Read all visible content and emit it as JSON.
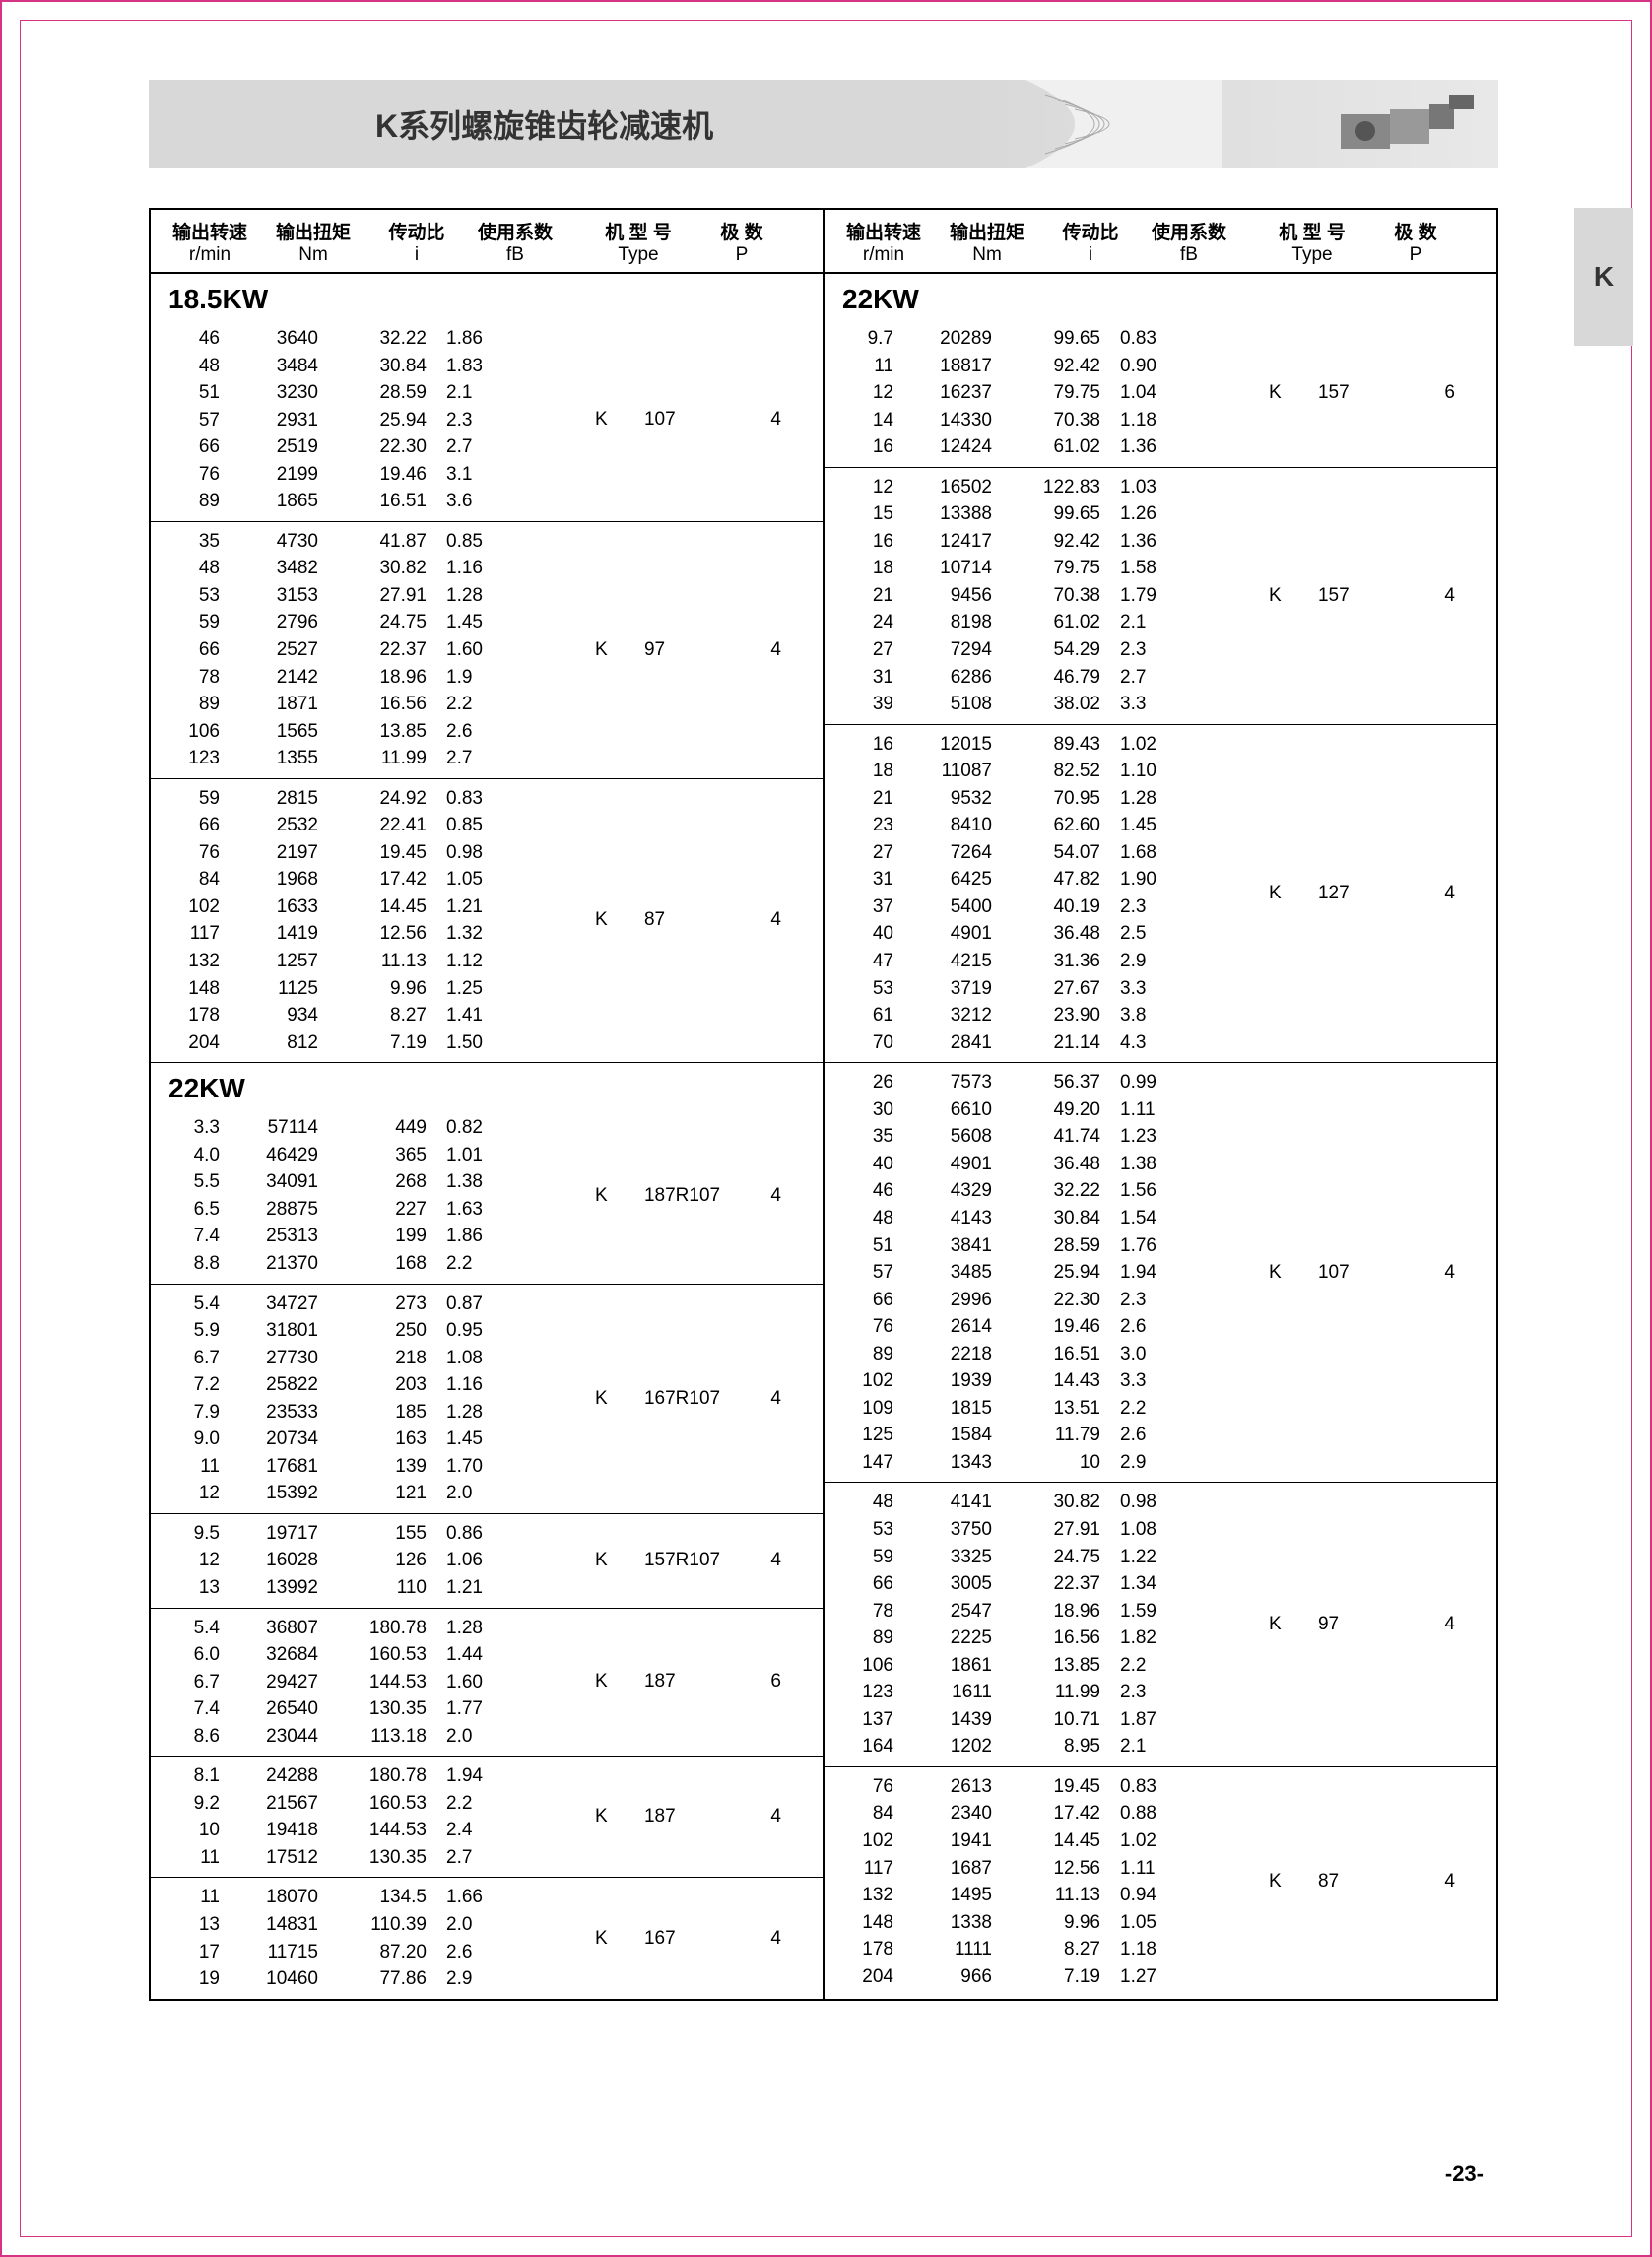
{
  "header": {
    "title": "K系列螺旋锥齿轮减速机"
  },
  "side_tab": "K",
  "page_number": "-23-",
  "columns_header": {
    "h1": "输出转速",
    "h2": "输出扭矩",
    "h3": "传动比",
    "h4": "使用系数",
    "h5": "机 型 号",
    "h6": "极 数",
    "s1": "r/min",
    "s2": "Nm",
    "s3": "i",
    "s4": "fB",
    "s5": "Type",
    "s6": "P"
  },
  "left": [
    {
      "title": "18.5KW",
      "blocks": [
        {
          "type_k": "K",
          "type_num": "107",
          "type_p": "4",
          "rows": [
            [
              "46",
              "3640",
              "32.22",
              "1.86"
            ],
            [
              "48",
              "3484",
              "30.84",
              "1.83"
            ],
            [
              "51",
              "3230",
              "28.59",
              "2.1"
            ],
            [
              "57",
              "2931",
              "25.94",
              "2.3"
            ],
            [
              "66",
              "2519",
              "22.30",
              "2.7"
            ],
            [
              "76",
              "2199",
              "19.46",
              "3.1"
            ],
            [
              "89",
              "1865",
              "16.51",
              "3.6"
            ]
          ]
        },
        {
          "type_k": "K",
          "type_num": "97",
          "type_p": "4",
          "rows": [
            [
              "35",
              "4730",
              "41.87",
              "0.85"
            ],
            [
              "48",
              "3482",
              "30.82",
              "1.16"
            ],
            [
              "53",
              "3153",
              "27.91",
              "1.28"
            ],
            [
              "59",
              "2796",
              "24.75",
              "1.45"
            ],
            [
              "66",
              "2527",
              "22.37",
              "1.60"
            ],
            [
              "78",
              "2142",
              "18.96",
              "1.9"
            ],
            [
              "89",
              "1871",
              "16.56",
              "2.2"
            ],
            [
              "106",
              "1565",
              "13.85",
              "2.6"
            ],
            [
              "123",
              "1355",
              "11.99",
              "2.7"
            ]
          ]
        },
        {
          "type_k": "K",
          "type_num": "87",
          "type_p": "4",
          "rows": [
            [
              "59",
              "2815",
              "24.92",
              "0.83"
            ],
            [
              "66",
              "2532",
              "22.41",
              "0.85"
            ],
            [
              "76",
              "2197",
              "19.45",
              "0.98"
            ],
            [
              "84",
              "1968",
              "17.42",
              "1.05"
            ],
            [
              "102",
              "1633",
              "14.45",
              "1.21"
            ],
            [
              "117",
              "1419",
              "12.56",
              "1.32"
            ],
            [
              "132",
              "1257",
              "11.13",
              "1.12"
            ],
            [
              "148",
              "1125",
              "9.96",
              "1.25"
            ],
            [
              "178",
              "934",
              "8.27",
              "1.41"
            ],
            [
              "204",
              "812",
              "7.19",
              "1.50"
            ]
          ]
        }
      ]
    },
    {
      "title": "22KW",
      "blocks": [
        {
          "type_k": "K",
          "type_num": "187R107",
          "type_p": "4",
          "rows": [
            [
              "3.3",
              "57114",
              "449",
              "0.82"
            ],
            [
              "4.0",
              "46429",
              "365",
              "1.01"
            ],
            [
              "5.5",
              "34091",
              "268",
              "1.38"
            ],
            [
              "6.5",
              "28875",
              "227",
              "1.63"
            ],
            [
              "7.4",
              "25313",
              "199",
              "1.86"
            ],
            [
              "8.8",
              "21370",
              "168",
              "2.2"
            ]
          ]
        },
        {
          "type_k": "K",
          "type_num": "167R107",
          "type_p": "4",
          "rows": [
            [
              "5.4",
              "34727",
              "273",
              "0.87"
            ],
            [
              "5.9",
              "31801",
              "250",
              "0.95"
            ],
            [
              "6.7",
              "27730",
              "218",
              "1.08"
            ],
            [
              "7.2",
              "25822",
              "203",
              "1.16"
            ],
            [
              "7.9",
              "23533",
              "185",
              "1.28"
            ],
            [
              "9.0",
              "20734",
              "163",
              "1.45"
            ],
            [
              "11",
              "17681",
              "139",
              "1.70"
            ],
            [
              "12",
              "15392",
              "121",
              "2.0"
            ]
          ]
        },
        {
          "type_k": "K",
          "type_num": "157R107",
          "type_p": "4",
          "rows": [
            [
              "9.5",
              "19717",
              "155",
              "0.86"
            ],
            [
              "12",
              "16028",
              "126",
              "1.06"
            ],
            [
              "13",
              "13992",
              "110",
              "1.21"
            ]
          ]
        },
        {
          "type_k": "K",
          "type_num": "187",
          "type_p": "6",
          "rows": [
            [
              "5.4",
              "36807",
              "180.78",
              "1.28"
            ],
            [
              "6.0",
              "32684",
              "160.53",
              "1.44"
            ],
            [
              "6.7",
              "29427",
              "144.53",
              "1.60"
            ],
            [
              "7.4",
              "26540",
              "130.35",
              "1.77"
            ],
            [
              "8.6",
              "23044",
              "113.18",
              "2.0"
            ]
          ]
        },
        {
          "type_k": "K",
          "type_num": "187",
          "type_p": "4",
          "rows": [
            [
              "8.1",
              "24288",
              "180.78",
              "1.94"
            ],
            [
              "9.2",
              "21567",
              "160.53",
              "2.2"
            ],
            [
              "10",
              "19418",
              "144.53",
              "2.4"
            ],
            [
              "11",
              "17512",
              "130.35",
              "2.7"
            ]
          ]
        },
        {
          "type_k": "K",
          "type_num": "167",
          "type_p": "4",
          "rows": [
            [
              "11",
              "18070",
              "134.5",
              "1.66"
            ],
            [
              "13",
              "14831",
              "110.39",
              "2.0"
            ],
            [
              "17",
              "11715",
              "87.20",
              "2.6"
            ],
            [
              "19",
              "10460",
              "77.86",
              "2.9"
            ]
          ]
        }
      ]
    }
  ],
  "right": [
    {
      "title": "22KW",
      "blocks": [
        {
          "type_k": "K",
          "type_num": "157",
          "type_p": "6",
          "rows": [
            [
              "9.7",
              "20289",
              "99.65",
              "0.83"
            ],
            [
              "11",
              "18817",
              "92.42",
              "0.90"
            ],
            [
              "12",
              "16237",
              "79.75",
              "1.04"
            ],
            [
              "14",
              "14330",
              "70.38",
              "1.18"
            ],
            [
              "16",
              "12424",
              "61.02",
              "1.36"
            ]
          ]
        },
        {
          "type_k": "K",
          "type_num": "157",
          "type_p": "4",
          "rows": [
            [
              "12",
              "16502",
              "122.83",
              "1.03"
            ],
            [
              "15",
              "13388",
              "99.65",
              "1.26"
            ],
            [
              "16",
              "12417",
              "92.42",
              "1.36"
            ],
            [
              "18",
              "10714",
              "79.75",
              "1.58"
            ],
            [
              "21",
              "9456",
              "70.38",
              "1.79"
            ],
            [
              "24",
              "8198",
              "61.02",
              "2.1"
            ],
            [
              "27",
              "7294",
              "54.29",
              "2.3"
            ],
            [
              "31",
              "6286",
              "46.79",
              "2.7"
            ],
            [
              "39",
              "5108",
              "38.02",
              "3.3"
            ]
          ]
        },
        {
          "type_k": "K",
          "type_num": "127",
          "type_p": "4",
          "rows": [
            [
              "16",
              "12015",
              "89.43",
              "1.02"
            ],
            [
              "18",
              "11087",
              "82.52",
              "1.10"
            ],
            [
              "21",
              "9532",
              "70.95",
              "1.28"
            ],
            [
              "23",
              "8410",
              "62.60",
              "1.45"
            ],
            [
              "27",
              "7264",
              "54.07",
              "1.68"
            ],
            [
              "31",
              "6425",
              "47.82",
              "1.90"
            ],
            [
              "37",
              "5400",
              "40.19",
              "2.3"
            ],
            [
              "40",
              "4901",
              "36.48",
              "2.5"
            ],
            [
              "47",
              "4215",
              "31.36",
              "2.9"
            ],
            [
              "53",
              "3719",
              "27.67",
              "3.3"
            ],
            [
              "61",
              "3212",
              "23.90",
              "3.8"
            ],
            [
              "70",
              "2841",
              "21.14",
              "4.3"
            ]
          ]
        },
        {
          "type_k": "K",
          "type_num": "107",
          "type_p": "4",
          "rows": [
            [
              "26",
              "7573",
              "56.37",
              "0.99"
            ],
            [
              "30",
              "6610",
              "49.20",
              "1.11"
            ],
            [
              "35",
              "5608",
              "41.74",
              "1.23"
            ],
            [
              "40",
              "4901",
              "36.48",
              "1.38"
            ],
            [
              "46",
              "4329",
              "32.22",
              "1.56"
            ],
            [
              "48",
              "4143",
              "30.84",
              "1.54"
            ],
            [
              "51",
              "3841",
              "28.59",
              "1.76"
            ],
            [
              "57",
              "3485",
              "25.94",
              "1.94"
            ],
            [
              "66",
              "2996",
              "22.30",
              "2.3"
            ],
            [
              "76",
              "2614",
              "19.46",
              "2.6"
            ],
            [
              "89",
              "2218",
              "16.51",
              "3.0"
            ],
            [
              "102",
              "1939",
              "14.43",
              "3.3"
            ],
            [
              "109",
              "1815",
              "13.51",
              "2.2"
            ],
            [
              "125",
              "1584",
              "11.79",
              "2.6"
            ],
            [
              "147",
              "1343",
              "10",
              "2.9"
            ]
          ]
        },
        {
          "type_k": "K",
          "type_num": "97",
          "type_p": "4",
          "rows": [
            [
              "48",
              "4141",
              "30.82",
              "0.98"
            ],
            [
              "53",
              "3750",
              "27.91",
              "1.08"
            ],
            [
              "59",
              "3325",
              "24.75",
              "1.22"
            ],
            [
              "66",
              "3005",
              "22.37",
              "1.34"
            ],
            [
              "78",
              "2547",
              "18.96",
              "1.59"
            ],
            [
              "89",
              "2225",
              "16.56",
              "1.82"
            ],
            [
              "106",
              "1861",
              "13.85",
              "2.2"
            ],
            [
              "123",
              "1611",
              "11.99",
              "2.3"
            ],
            [
              "137",
              "1439",
              "10.71",
              "1.87"
            ],
            [
              "164",
              "1202",
              "8.95",
              "2.1"
            ]
          ]
        },
        {
          "type_k": "K",
          "type_num": "87",
          "type_p": "4",
          "rows": [
            [
              "76",
              "2613",
              "19.45",
              "0.83"
            ],
            [
              "84",
              "2340",
              "17.42",
              "0.88"
            ],
            [
              "102",
              "1941",
              "14.45",
              "1.02"
            ],
            [
              "117",
              "1687",
              "12.56",
              "1.11"
            ],
            [
              "132",
              "1495",
              "11.13",
              "0.94"
            ],
            [
              "148",
              "1338",
              "9.96",
              "1.05"
            ],
            [
              "178",
              "1111",
              "8.27",
              "1.18"
            ],
            [
              "204",
              "966",
              "7.19",
              "1.27"
            ]
          ]
        }
      ]
    }
  ]
}
